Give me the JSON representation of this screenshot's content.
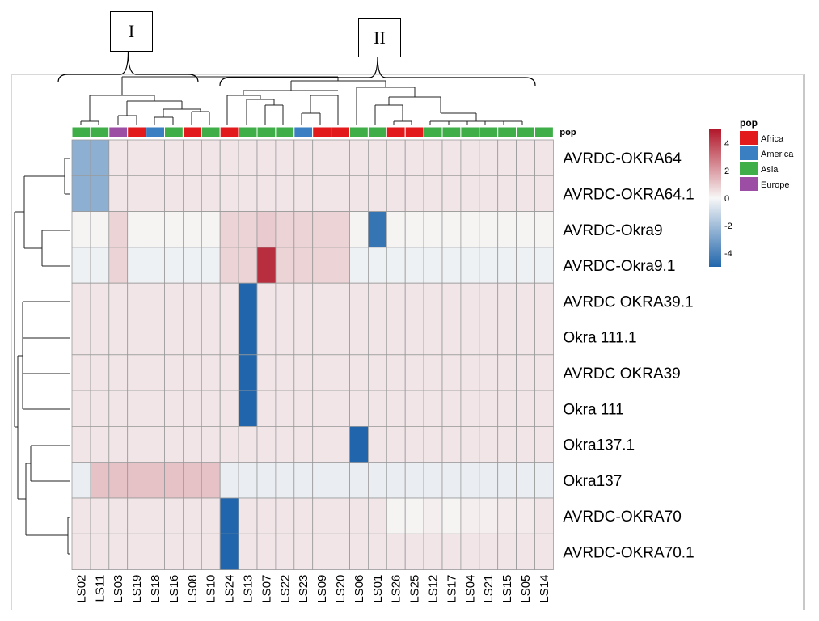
{
  "chart_data": {
    "type": "heatmap",
    "row_labels": [
      "AVRDC-OKRA64",
      "AVRDC-OKRA64.1",
      "AVRDC-Okra9",
      "AVRDC-Okra9.1",
      "AVRDC OKRA39.1",
      "Okra 111.1",
      "AVRDC OKRA39",
      "Okra 111",
      "Okra137.1",
      "Okra137",
      "AVRDC-OKRA70",
      "AVRDC-OKRA70.1"
    ],
    "col_labels": [
      "LS02",
      "LS11",
      "LS03",
      "LS19",
      "LS18",
      "LS16",
      "LS08",
      "LS10",
      "LS24",
      "LS13",
      "LS07",
      "LS22",
      "LS23",
      "LS09",
      "LS20",
      "LS06",
      "LS01",
      "LS26",
      "LS25",
      "LS12",
      "LS17",
      "LS04",
      "LS21",
      "LS15",
      "LS05",
      "LS14"
    ],
    "col_pop": [
      "Asia",
      "Asia",
      "Europe",
      "Africa",
      "America",
      "Asia",
      "Africa",
      "Asia",
      "Africa",
      "Asia",
      "Asia",
      "Asia",
      "America",
      "Africa",
      "Africa",
      "Asia",
      "Asia",
      "Africa",
      "Africa",
      "Asia",
      "Asia",
      "Asia",
      "Asia",
      "Asia",
      "Asia",
      "Asia"
    ],
    "values": [
      [
        -2.5,
        -2.5,
        0.4,
        0.4,
        0.4,
        0.4,
        0.4,
        0.4,
        0.4,
        0.4,
        0.4,
        0.4,
        0.4,
        0.4,
        0.4,
        0.4,
        0.4,
        0.4,
        0.4,
        0.4,
        0.4,
        0.4,
        0.4,
        0.4,
        0.4,
        0.4
      ],
      [
        -2.5,
        -2.5,
        0.4,
        0.4,
        0.4,
        0.4,
        0.4,
        0.4,
        0.4,
        0.4,
        0.4,
        0.4,
        0.4,
        0.4,
        0.4,
        0.4,
        0.4,
        0.4,
        0.4,
        0.4,
        0.4,
        0.4,
        0.4,
        0.4,
        0.4,
        0.4
      ],
      [
        0.1,
        0.1,
        0.8,
        0.1,
        0.1,
        0.1,
        0.1,
        0.1,
        0.8,
        0.8,
        1.0,
        0.8,
        0.8,
        0.8,
        0.8,
        0.1,
        -4.5,
        0.1,
        0.1,
        0.1,
        0.1,
        0.1,
        0.1,
        0.1,
        0.1,
        0.1
      ],
      [
        -0.2,
        -0.2,
        0.8,
        -0.2,
        -0.2,
        -0.2,
        -0.2,
        -0.2,
        0.8,
        0.8,
        4.5,
        0.8,
        0.8,
        0.8,
        0.8,
        -0.2,
        -0.2,
        -0.2,
        -0.2,
        -0.2,
        -0.2,
        -0.2,
        -0.2,
        -0.2,
        -0.2,
        -0.2
      ],
      [
        0.4,
        0.4,
        0.4,
        0.4,
        0.4,
        0.4,
        0.4,
        0.4,
        0.4,
        -5,
        0.4,
        0.4,
        0.4,
        0.4,
        0.4,
        0.4,
        0.4,
        0.4,
        0.4,
        0.4,
        0.4,
        0.4,
        0.4,
        0.4,
        0.4,
        0.4
      ],
      [
        0.4,
        0.4,
        0.4,
        0.4,
        0.4,
        0.4,
        0.4,
        0.4,
        0.4,
        -5,
        0.4,
        0.4,
        0.4,
        0.4,
        0.4,
        0.4,
        0.4,
        0.4,
        0.4,
        0.4,
        0.4,
        0.4,
        0.4,
        0.4,
        0.4,
        0.4
      ],
      [
        0.4,
        0.4,
        0.4,
        0.4,
        0.4,
        0.4,
        0.4,
        0.4,
        0.4,
        -5,
        0.4,
        0.4,
        0.4,
        0.4,
        0.4,
        0.4,
        0.4,
        0.4,
        0.4,
        0.4,
        0.4,
        0.4,
        0.4,
        0.4,
        0.4,
        0.4
      ],
      [
        0.4,
        0.4,
        0.4,
        0.4,
        0.4,
        0.4,
        0.4,
        0.4,
        0.4,
        -5,
        0.4,
        0.4,
        0.4,
        0.4,
        0.4,
        0.4,
        0.4,
        0.4,
        0.4,
        0.4,
        0.4,
        0.4,
        0.4,
        0.4,
        0.4,
        0.4
      ],
      [
        0.4,
        0.4,
        0.4,
        0.4,
        0.4,
        0.4,
        0.4,
        0.4,
        0.4,
        0.4,
        0.4,
        0.4,
        0.4,
        0.4,
        0.4,
        -5,
        0.4,
        0.4,
        0.4,
        0.4,
        0.4,
        0.4,
        0.4,
        0.4,
        0.4,
        0.4
      ],
      [
        -0.3,
        1.2,
        1.2,
        1.2,
        1.2,
        1.2,
        1.2,
        1.2,
        -0.3,
        -0.3,
        -0.3,
        -0.3,
        -0.3,
        -0.3,
        -0.3,
        -0.3,
        -0.3,
        -0.3,
        -0.3,
        -0.3,
        -0.3,
        -0.3,
        -0.3,
        -0.3,
        -0.3,
        -0.3
      ],
      [
        0.4,
        0.4,
        0.4,
        0.4,
        0.4,
        0.4,
        0.4,
        0.4,
        -5,
        0.4,
        0.4,
        0.4,
        0.4,
        0.4,
        0.4,
        0.4,
        0.4,
        0.1,
        0.1,
        0.2,
        0.1,
        0.2,
        0.2,
        0.3,
        0.3,
        0.4
      ],
      [
        0.4,
        0.4,
        0.4,
        0.4,
        0.4,
        0.4,
        0.4,
        0.4,
        -5,
        0.4,
        0.4,
        0.4,
        0.4,
        0.4,
        0.4,
        0.4,
        0.4,
        0.4,
        0.4,
        0.4,
        0.4,
        0.4,
        0.4,
        0.4,
        0.4,
        0.4
      ]
    ],
    "color_scale": {
      "min": -5,
      "max": 5,
      "low": "#2166ac",
      "mid": "#f7f7f7",
      "high": "#b2182b"
    },
    "colorbar_ticks": [
      4,
      2,
      0,
      -2,
      -4
    ],
    "annotation_title": "pop",
    "legend_title": "pop",
    "legend": [
      {
        "name": "Africa",
        "color": "#e31a1c"
      },
      {
        "name": "America",
        "color": "#3a7fc2"
      },
      {
        "name": "Asia",
        "color": "#3fae49"
      },
      {
        "name": "Europe",
        "color": "#9b4ea3"
      }
    ],
    "cluster_labels": [
      "I",
      "II"
    ],
    "grid": true,
    "legend_position": "right"
  }
}
